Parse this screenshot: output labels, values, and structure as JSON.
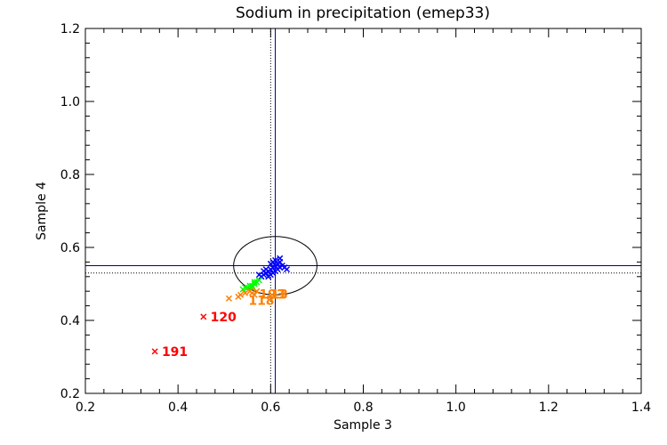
{
  "chart_data": {
    "type": "scatter",
    "title": "Sodium in precipitation (emep33)",
    "xlabel": "Sample 3",
    "ylabel": "Sample 4",
    "xlim": [
      0.2,
      1.4
    ],
    "ylim": [
      0.2,
      1.2
    ],
    "xticks": [
      "0.2",
      "0.4",
      "0.6",
      "0.8",
      "1.0",
      "1.2",
      "1.4"
    ],
    "yticks": [
      "0.2",
      "0.4",
      "0.6",
      "0.8",
      "1.0",
      "1.2"
    ],
    "colors": {
      "blue": "#0000ff",
      "green": "#00ff00",
      "orange": "#ff8000",
      "red": "#ff0000",
      "ref_line": "#000080"
    },
    "reference_lines": {
      "solid_x": 0.61,
      "solid_y": 0.55,
      "dotted_x": 0.6,
      "dotted_y": 0.53
    },
    "ellipse": {
      "cx": 0.61,
      "cy": 0.55,
      "rx": 0.09,
      "ry": 0.08
    },
    "series": [
      {
        "color": "blue",
        "points": [
          [
            0.58,
            0.52
          ],
          [
            0.585,
            0.525
          ],
          [
            0.59,
            0.53
          ],
          [
            0.595,
            0.535
          ],
          [
            0.6,
            0.54
          ],
          [
            0.605,
            0.545
          ],
          [
            0.61,
            0.55
          ],
          [
            0.615,
            0.555
          ],
          [
            0.62,
            0.56
          ],
          [
            0.595,
            0.52
          ],
          [
            0.6,
            0.525
          ],
          [
            0.605,
            0.53
          ],
          [
            0.61,
            0.535
          ],
          [
            0.615,
            0.54
          ],
          [
            0.62,
            0.545
          ],
          [
            0.625,
            0.55
          ],
          [
            0.63,
            0.545
          ],
          [
            0.605,
            0.56
          ],
          [
            0.61,
            0.565
          ],
          [
            0.62,
            0.57
          ],
          [
            0.585,
            0.535
          ],
          [
            0.59,
            0.54
          ],
          [
            0.575,
            0.525
          ],
          [
            0.635,
            0.54
          ],
          [
            0.6,
            0.555
          ]
        ]
      },
      {
        "color": "green",
        "points": [
          [
            0.54,
            0.485
          ],
          [
            0.545,
            0.49
          ],
          [
            0.55,
            0.49
          ],
          [
            0.555,
            0.495
          ],
          [
            0.56,
            0.495
          ],
          [
            0.565,
            0.5
          ],
          [
            0.57,
            0.505
          ],
          [
            0.575,
            0.51
          ],
          [
            0.56,
            0.49
          ],
          [
            0.565,
            0.505
          ]
        ]
      },
      {
        "color": "orange",
        "points": [
          [
            0.51,
            0.46
          ],
          [
            0.53,
            0.465
          ],
          [
            0.535,
            0.47
          ],
          [
            0.545,
            0.475
          ],
          [
            0.555,
            0.48
          ],
          [
            0.56,
            0.475
          ],
          [
            0.565,
            0.47
          ],
          [
            0.57,
            0.48
          ]
        ],
        "labels": [
          {
            "text": "118",
            "x": 0.552,
            "y": 0.455
          },
          {
            "text": "193",
            "x": 0.575,
            "y": 0.472
          },
          {
            "text": "13",
            "x": 0.6,
            "y": 0.472
          }
        ]
      },
      {
        "color": "red",
        "points": [
          [
            0.455,
            0.41
          ],
          [
            0.35,
            0.315
          ]
        ],
        "labels": [
          {
            "text": "120",
            "x": 0.47,
            "y": 0.41
          },
          {
            "text": "191",
            "x": 0.365,
            "y": 0.315
          }
        ]
      }
    ]
  }
}
